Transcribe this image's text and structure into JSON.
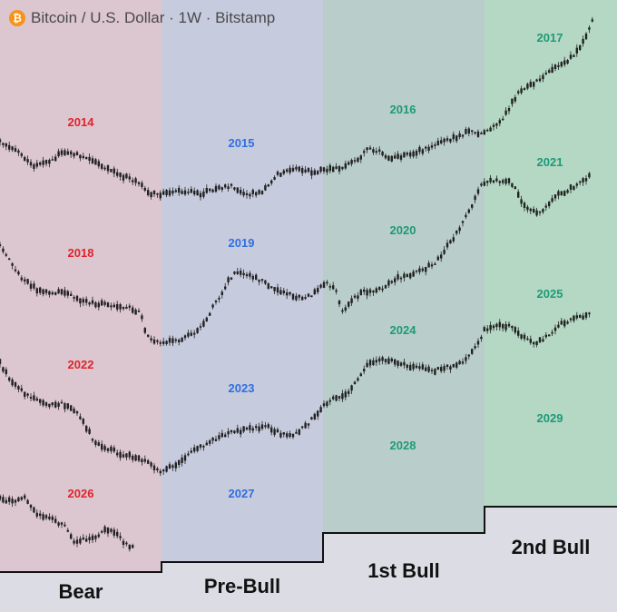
{
  "header": {
    "icon": "bitcoin-icon",
    "symbol": "₿",
    "title": "Bitcoin / U.S. Dollar · 1W · Bitstamp"
  },
  "colors": {
    "bear_bg": "#dcc6cf",
    "prebull_bg": "#c7cbde",
    "bull1_bg": "#b9ceca",
    "bull2_bg": "#b4d8c4",
    "page_bg": "#dcdce4",
    "red": "#e0242b",
    "blue": "#2f6fe0",
    "green": "#1e9a78",
    "candle": "#222222"
  },
  "phases": [
    {
      "key": "bear",
      "label": "Bear"
    },
    {
      "key": "prebull",
      "label": "Pre-Bull"
    },
    {
      "key": "bull1",
      "label": "1st Bull"
    },
    {
      "key": "bull2",
      "label": "2nd Bull"
    }
  ],
  "chart_data": {
    "type": "candlestick",
    "cycles": [
      {
        "phase": "Bear",
        "years": [
          "2014",
          "2018",
          "2022",
          "2026"
        ]
      },
      {
        "phase": "Pre-Bull",
        "years": [
          "2015",
          "2019",
          "2023",
          "2027"
        ]
      },
      {
        "phase": "1st Bull",
        "years": [
          "2016",
          "2020",
          "2024",
          "2028"
        ]
      },
      {
        "phase": "2nd Bull",
        "years": [
          "2017",
          "2021",
          "2025",
          "2029"
        ]
      }
    ],
    "series": [
      {
        "cycle": "2014-2017"
      },
      {
        "cycle": "2018-2021"
      },
      {
        "cycle": "2022-2025"
      },
      {
        "cycle": "2026"
      }
    ]
  }
}
